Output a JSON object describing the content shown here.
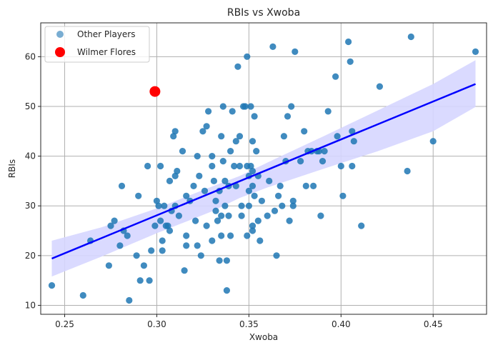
{
  "chart_data": {
    "type": "scatter",
    "title": "RBIs vs Xwoba",
    "xlabel": "Xwoba",
    "ylabel": "RBIs",
    "xlim": [
      0.237,
      0.479
    ],
    "ylim": [
      8.2,
      66.8
    ],
    "xticks": [
      0.25,
      0.3,
      0.35,
      0.4,
      0.45
    ],
    "xtick_labels": [
      "0.25",
      "0.30",
      "0.35",
      "0.40",
      "0.45"
    ],
    "yticks": [
      10,
      20,
      30,
      40,
      50,
      60
    ],
    "ytick_labels": [
      "10",
      "20",
      "30",
      "40",
      "50",
      "60"
    ],
    "grid": true,
    "legend_position": "top-left",
    "colors": {
      "others": "#1f77b4",
      "highlight": "#ff0000",
      "trend": "#0000ff",
      "band": "#d6d6ff"
    },
    "series": [
      {
        "name": "Other Players",
        "points": [
          [
            0.243,
            14
          ],
          [
            0.26,
            12
          ],
          [
            0.264,
            23
          ],
          [
            0.274,
            18
          ],
          [
            0.275,
            26
          ],
          [
            0.277,
            27
          ],
          [
            0.28,
            22
          ],
          [
            0.281,
            34
          ],
          [
            0.282,
            25
          ],
          [
            0.284,
            24
          ],
          [
            0.285,
            11
          ],
          [
            0.289,
            20
          ],
          [
            0.29,
            32
          ],
          [
            0.291,
            15
          ],
          [
            0.293,
            18
          ],
          [
            0.295,
            38
          ],
          [
            0.296,
            15
          ],
          [
            0.297,
            21
          ],
          [
            0.299,
            26
          ],
          [
            0.3,
            31
          ],
          [
            0.301,
            30
          ],
          [
            0.302,
            27
          ],
          [
            0.302,
            38
          ],
          [
            0.303,
            21
          ],
          [
            0.303,
            23
          ],
          [
            0.304,
            30
          ],
          [
            0.305,
            26
          ],
          [
            0.306,
            26
          ],
          [
            0.307,
            35
          ],
          [
            0.307,
            25
          ],
          [
            0.308,
            29
          ],
          [
            0.309,
            44
          ],
          [
            0.31,
            30
          ],
          [
            0.31,
            36
          ],
          [
            0.31,
            45
          ],
          [
            0.311,
            37
          ],
          [
            0.312,
            28
          ],
          [
            0.314,
            41
          ],
          [
            0.315,
            17
          ],
          [
            0.316,
            24
          ],
          [
            0.316,
            32
          ],
          [
            0.316,
            22
          ],
          [
            0.318,
            31
          ],
          [
            0.32,
            34
          ],
          [
            0.321,
            27
          ],
          [
            0.322,
            40
          ],
          [
            0.322,
            22
          ],
          [
            0.323,
            36
          ],
          [
            0.324,
            20
          ],
          [
            0.325,
            45
          ],
          [
            0.326,
            33
          ],
          [
            0.327,
            46
          ],
          [
            0.327,
            26
          ],
          [
            0.328,
            49
          ],
          [
            0.33,
            38
          ],
          [
            0.33,
            40
          ],
          [
            0.33,
            23
          ],
          [
            0.331,
            35
          ],
          [
            0.332,
            29
          ],
          [
            0.332,
            31
          ],
          [
            0.333,
            27
          ],
          [
            0.334,
            19
          ],
          [
            0.334,
            33
          ],
          [
            0.335,
            28
          ],
          [
            0.335,
            24
          ],
          [
            0.335,
            44
          ],
          [
            0.336,
            50
          ],
          [
            0.336,
            39
          ],
          [
            0.337,
            35
          ],
          [
            0.337,
            30
          ],
          [
            0.338,
            19
          ],
          [
            0.338,
            13
          ],
          [
            0.339,
            28
          ],
          [
            0.339,
            34
          ],
          [
            0.34,
            41
          ],
          [
            0.34,
            24
          ],
          [
            0.341,
            49
          ],
          [
            0.342,
            38
          ],
          [
            0.343,
            34
          ],
          [
            0.343,
            43
          ],
          [
            0.344,
            58
          ],
          [
            0.345,
            38
          ],
          [
            0.345,
            44
          ],
          [
            0.346,
            28
          ],
          [
            0.346,
            30
          ],
          [
            0.347,
            50
          ],
          [
            0.348,
            50
          ],
          [
            0.349,
            24
          ],
          [
            0.349,
            60
          ],
          [
            0.349,
            38
          ],
          [
            0.35,
            33
          ],
          [
            0.35,
            36
          ],
          [
            0.35,
            30
          ],
          [
            0.351,
            50
          ],
          [
            0.351,
            38
          ],
          [
            0.352,
            37
          ],
          [
            0.352,
            26
          ],
          [
            0.352,
            25
          ],
          [
            0.352,
            34
          ],
          [
            0.352,
            43
          ],
          [
            0.353,
            48
          ],
          [
            0.353,
            32
          ],
          [
            0.354,
            41
          ],
          [
            0.355,
            36
          ],
          [
            0.355,
            27
          ],
          [
            0.356,
            23
          ],
          [
            0.357,
            31
          ],
          [
            0.36,
            28
          ],
          [
            0.361,
            35
          ],
          [
            0.363,
            62
          ],
          [
            0.364,
            29
          ],
          [
            0.365,
            20
          ],
          [
            0.366,
            32
          ],
          [
            0.367,
            34
          ],
          [
            0.368,
            30
          ],
          [
            0.369,
            44
          ],
          [
            0.37,
            39
          ],
          [
            0.371,
            48
          ],
          [
            0.372,
            27
          ],
          [
            0.373,
            50
          ],
          [
            0.374,
            31
          ],
          [
            0.374,
            30
          ],
          [
            0.375,
            61
          ],
          [
            0.378,
            39
          ],
          [
            0.38,
            45
          ],
          [
            0.381,
            34
          ],
          [
            0.382,
            41
          ],
          [
            0.384,
            41
          ],
          [
            0.385,
            34
          ],
          [
            0.387,
            41
          ],
          [
            0.388,
            41
          ],
          [
            0.389,
            28
          ],
          [
            0.39,
            39
          ],
          [
            0.391,
            41
          ],
          [
            0.393,
            49
          ],
          [
            0.397,
            56
          ],
          [
            0.398,
            44
          ],
          [
            0.4,
            38
          ],
          [
            0.401,
            32
          ],
          [
            0.404,
            63
          ],
          [
            0.405,
            59
          ],
          [
            0.406,
            45
          ],
          [
            0.406,
            38
          ],
          [
            0.407,
            43
          ],
          [
            0.411,
            26
          ],
          [
            0.421,
            54
          ],
          [
            0.436,
            37
          ],
          [
            0.438,
            64
          ],
          [
            0.45,
            43
          ],
          [
            0.473,
            61
          ]
        ]
      },
      {
        "name": "Wilmer Flores",
        "points": [
          [
            0.299,
            53
          ]
        ]
      }
    ],
    "trend_line": {
      "x": [
        0.243,
        0.473
      ],
      "y": [
        19.4,
        54.5
      ]
    },
    "confidence_band": {
      "x": [
        0.243,
        0.27,
        0.3,
        0.33,
        0.345,
        0.36,
        0.39,
        0.42,
        0.45,
        0.473
      ],
      "upper": [
        23.0,
        25.7,
        29.5,
        33.9,
        36.0,
        38.7,
        43.9,
        49.2,
        54.5,
        59.3
      ],
      "lower": [
        15.8,
        19.8,
        24.5,
        28.9,
        31.6,
        33.7,
        37.4,
        41.0,
        45.0,
        49.9
      ]
    }
  }
}
